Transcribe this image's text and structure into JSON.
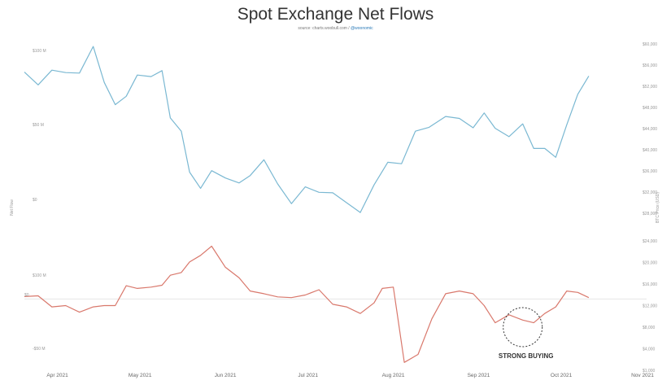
{
  "title": "Spot Exchange Net Flows",
  "source": {
    "prefix": "source: charts.woobull.com /",
    "link": "@woonomic"
  },
  "chart_data": {
    "type": "line",
    "title": "Spot Exchange Net Flows",
    "xlabel": "",
    "x_ticks": [
      "Apr 2021",
      "May 2021",
      "Jun 2021",
      "Jul 2021",
      "Aug 2021",
      "Sep 2021",
      "Oct 2021",
      "Nov 2021"
    ],
    "xlim": [
      "2021-03-20",
      "2021-11-01"
    ],
    "grid": false,
    "legend": "none",
    "panels": [
      {
        "name": "price",
        "y_axis_side": "right",
        "ylabel": "BTC Price (USD)",
        "ylim": [
          28000,
          66000
        ],
        "color": "#7ab8d2",
        "series": {
          "x": [
            "2021-03-20",
            "2021-03-25",
            "2021-03-30",
            "2021-04-04",
            "2021-04-09",
            "2021-04-14",
            "2021-04-18",
            "2021-04-22",
            "2021-04-26",
            "2021-04-30",
            "2021-05-05",
            "2021-05-09",
            "2021-05-12",
            "2021-05-16",
            "2021-05-19",
            "2021-05-23",
            "2021-05-27",
            "2021-06-01",
            "2021-06-06",
            "2021-06-10",
            "2021-06-15",
            "2021-06-20",
            "2021-06-25",
            "2021-06-30",
            "2021-07-05",
            "2021-07-10",
            "2021-07-15",
            "2021-07-20",
            "2021-07-25",
            "2021-07-30",
            "2021-08-04",
            "2021-08-09",
            "2021-08-14",
            "2021-08-20",
            "2021-08-25",
            "2021-08-30",
            "2021-09-03",
            "2021-09-07",
            "2021-09-12",
            "2021-09-17",
            "2021-09-21",
            "2021-09-25",
            "2021-09-29",
            "2021-10-03",
            "2021-10-07",
            "2021-10-11"
          ],
          "y": [
            58300,
            55700,
            58700,
            58200,
            58100,
            63500,
            56200,
            51700,
            53400,
            57700,
            57400,
            58600,
            49000,
            46300,
            38000,
            34700,
            38300,
            36800,
            35800,
            37300,
            40500,
            35600,
            31600,
            35000,
            33900,
            33800,
            31800,
            29800,
            35400,
            40000,
            39700,
            46300,
            47100,
            49300,
            48900,
            47000,
            50000,
            46900,
            45200,
            47800,
            42800,
            42800,
            41000,
            47600,
            53800,
            57500
          ]
        }
      },
      {
        "name": "net-flow",
        "y_axis_side": "left",
        "ylabel": "Net Flow",
        "ylim": [
          -270000,
          300000
        ],
        "color": "#d9786c",
        "zero_line": true,
        "series": {
          "x": [
            "2021-03-20",
            "2021-03-25",
            "2021-03-30",
            "2021-04-04",
            "2021-04-09",
            "2021-04-14",
            "2021-04-18",
            "2021-04-22",
            "2021-04-26",
            "2021-04-30",
            "2021-05-05",
            "2021-05-09",
            "2021-05-12",
            "2021-05-16",
            "2021-05-19",
            "2021-05-23",
            "2021-05-27",
            "2021-06-01",
            "2021-06-06",
            "2021-06-10",
            "2021-06-15",
            "2021-06-20",
            "2021-06-25",
            "2021-06-30",
            "2021-07-05",
            "2021-07-10",
            "2021-07-15",
            "2021-07-20",
            "2021-07-25",
            "2021-07-28",
            "2021-08-01",
            "2021-08-05",
            "2021-08-10",
            "2021-08-15",
            "2021-08-20",
            "2021-08-25",
            "2021-08-30",
            "2021-09-03",
            "2021-09-07",
            "2021-09-12",
            "2021-09-17",
            "2021-09-21",
            "2021-09-25",
            "2021-09-29",
            "2021-10-03",
            "2021-10-07",
            "2021-10-11"
          ],
          "y": [
            9000,
            12000,
            -30000,
            -25000,
            -50000,
            -30000,
            -25000,
            -25000,
            50000,
            40000,
            45000,
            52000,
            90000,
            100000,
            140000,
            165000,
            200000,
            120000,
            80000,
            30000,
            20000,
            8000,
            5000,
            15000,
            35000,
            -20000,
            -30000,
            -55000,
            -15000,
            40000,
            45000,
            -240000,
            -210000,
            -75000,
            20000,
            30000,
            20000,
            -25000,
            -90000,
            -60000,
            -80000,
            -90000,
            -55000,
            -30000,
            30000,
            25000,
            5000
          ]
        }
      }
    ],
    "left_ticks_price": [
      "$100 M",
      "$50 M",
      "$0"
    ],
    "left_ticks_flow": [
      "$100 M",
      "$0",
      "-$50 M"
    ],
    "right_ticks_price": [
      "$60,000",
      "$56,000",
      "$52,000",
      "$48,000",
      "$44,000",
      "$40,000",
      "$36,000",
      "$32,000",
      "$28,000"
    ],
    "right_ticks_flow": [
      "$24,000",
      "$20,000",
      "$16,000",
      "$12,000",
      "$8,000",
      "$4,000",
      "$1,000"
    ],
    "annotations": [
      {
        "text": "STRONG BUYING",
        "x": "2021-09-17"
      }
    ]
  }
}
